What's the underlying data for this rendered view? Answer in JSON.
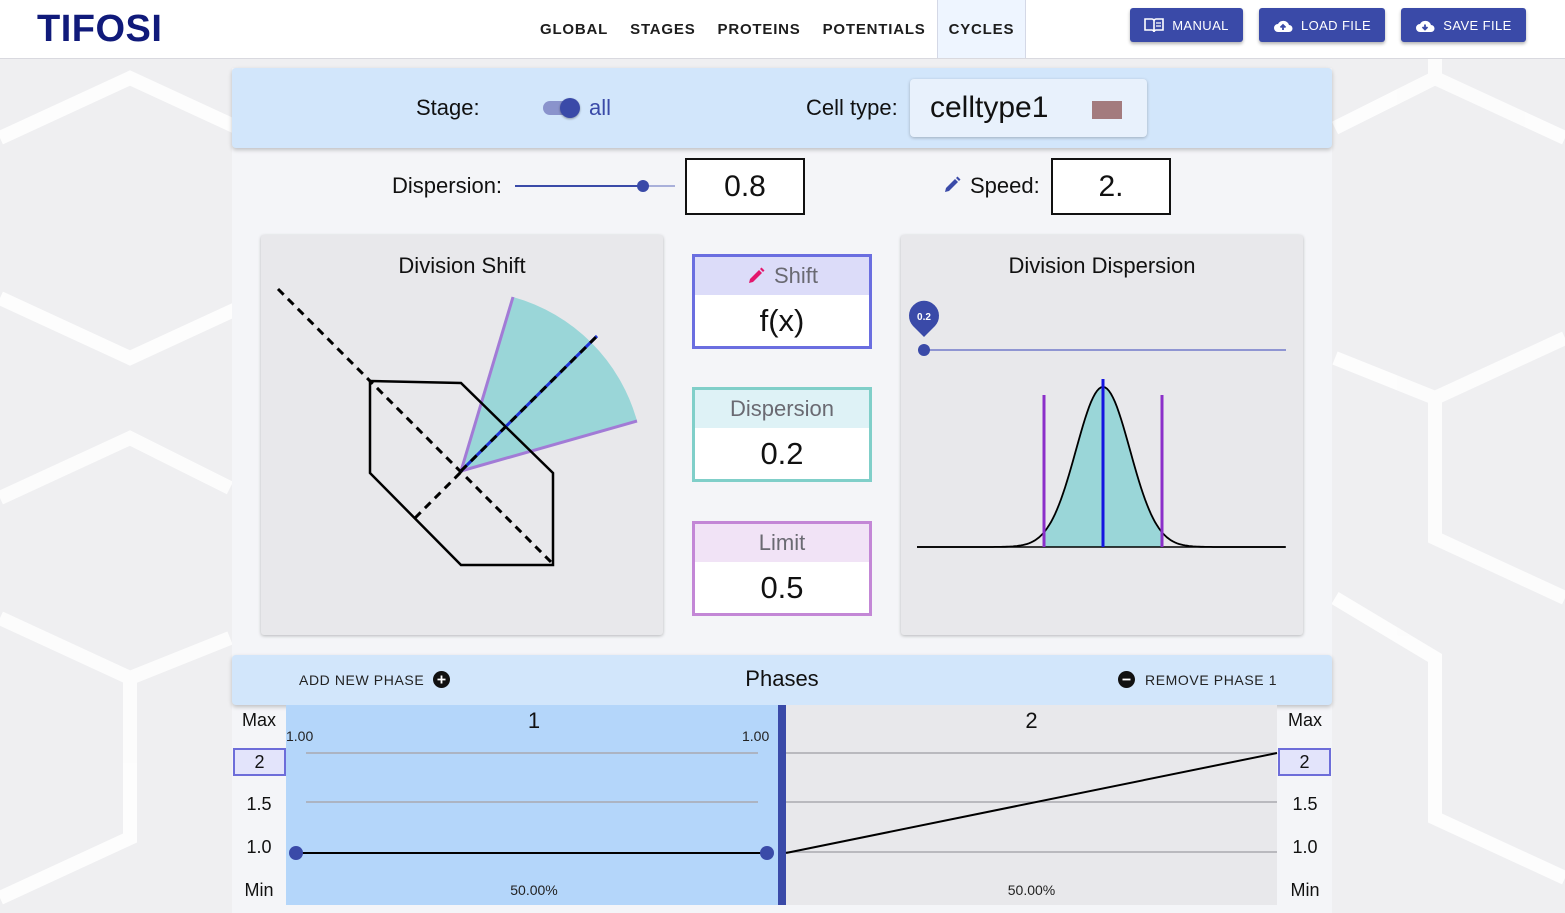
{
  "app": {
    "title": "TIFOSI"
  },
  "nav": {
    "tabs": [
      {
        "label": "GLOBAL"
      },
      {
        "label": "STAGES"
      },
      {
        "label": "PROTEINS"
      },
      {
        "label": "POTENTIALS"
      },
      {
        "label": "CYCLES",
        "active": true
      }
    ]
  },
  "header_buttons": {
    "manual": "MANUAL",
    "load": "LOAD FILE",
    "save": "SAVE FILE"
  },
  "stage": {
    "label": "Stage:",
    "toggle_on": true,
    "value": "all"
  },
  "celltype": {
    "label": "Cell type:",
    "value": "celltype1",
    "color": "#a37b7e"
  },
  "dispersion_ctrl": {
    "label": "Dispersion:",
    "value": "0.8",
    "slider_fraction": 0.8
  },
  "speed": {
    "label": "Speed:",
    "value": "2."
  },
  "division_shift": {
    "title": "Division Shift"
  },
  "division_dispersion": {
    "title": "Division Dispersion",
    "slider_value": "0.2",
    "slider_fraction": 0.0
  },
  "params": {
    "shift": {
      "label": "Shift",
      "value": "f(x)",
      "color": "#6a6ee0",
      "head_bg": "#dcdcf9"
    },
    "dispersion": {
      "label": "Dispersion",
      "value": "0.2",
      "color": "#80cfc9",
      "head_bg": "#def2f6"
    },
    "limit": {
      "label": "Limit",
      "value": "0.5",
      "color": "#c387d6",
      "head_bg": "#f1e3f6"
    }
  },
  "phases_bar": {
    "add": "ADD NEW PHASE",
    "title": "Phases",
    "remove": "REMOVE PHASE 1"
  },
  "phases_axis": {
    "max": "Max",
    "min": "Min",
    "top_value": "2",
    "ticks": [
      "1.5",
      "1.0"
    ]
  },
  "phases": [
    {
      "number": "1",
      "start_label": "1.00",
      "end_label": "1.00",
      "percent": "50.00%",
      "selected": true
    },
    {
      "number": "2",
      "percent": "50.00%",
      "selected": false
    }
  ]
}
